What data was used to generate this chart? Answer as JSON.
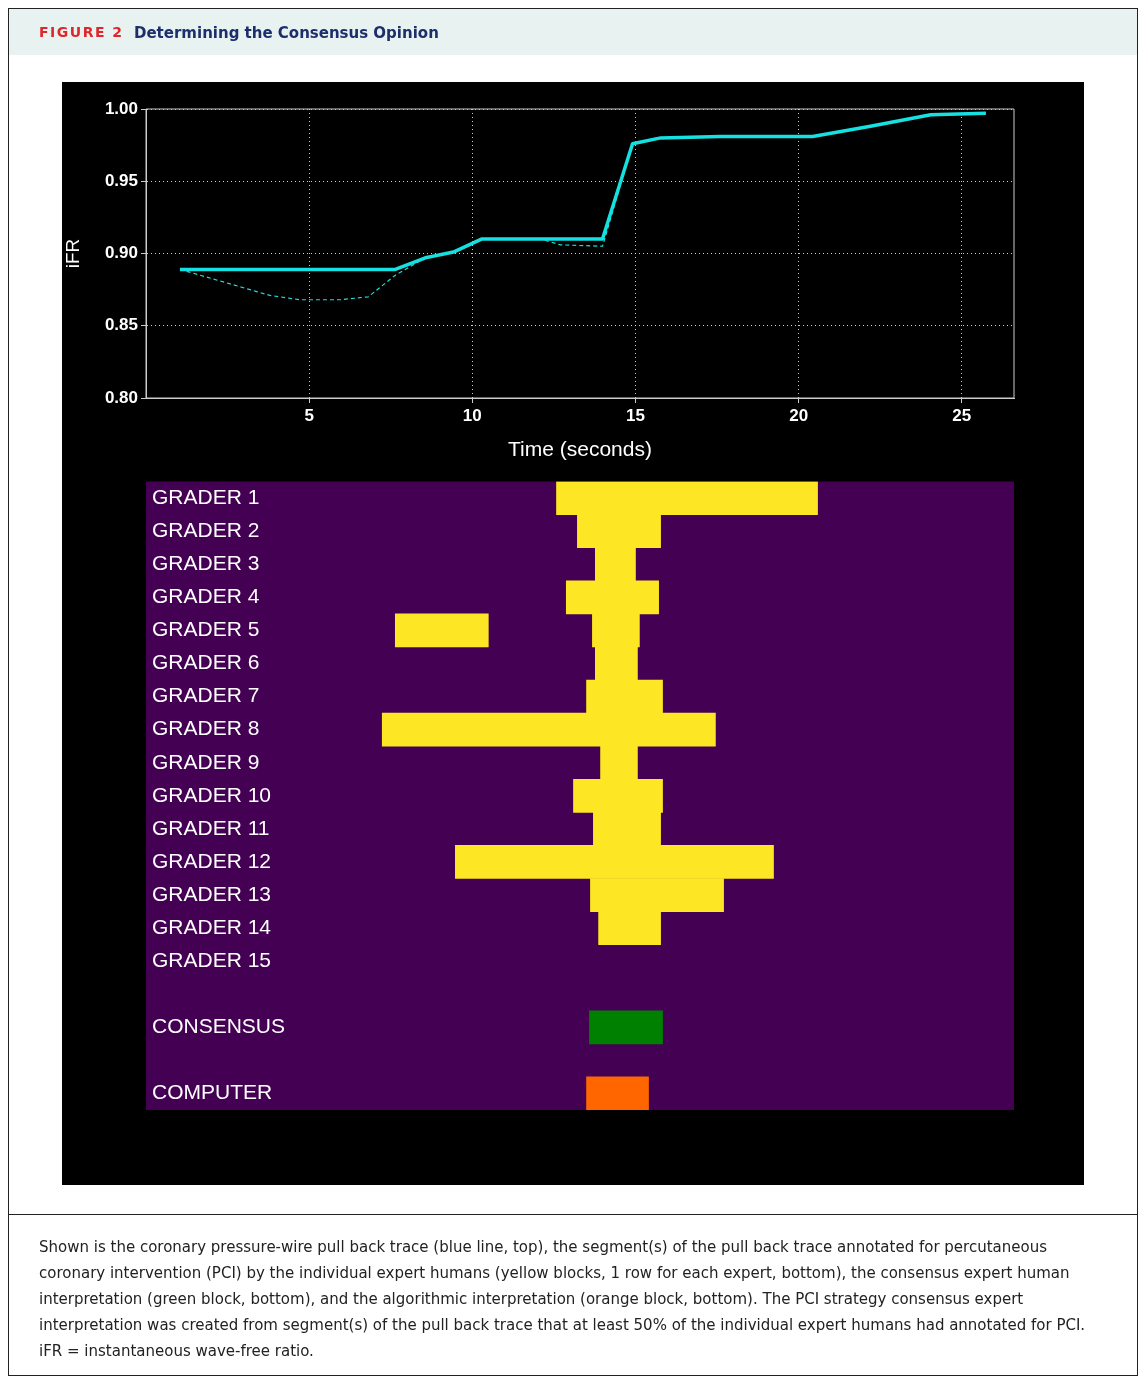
{
  "chart_data": [
    {
      "type": "line",
      "subtitle": "FIGURE 2",
      "title": "Determining the Consensus Opinion",
      "xlabel": "Time (seconds)",
      "ylabel": "iFR",
      "xlim": [
        0,
        26.6
      ],
      "xticks": [
        5,
        10,
        15,
        20,
        25
      ],
      "ylim": [
        0.8,
        1.0
      ],
      "yticks": [
        {
          "value": 0.8,
          "label": "0.80"
        },
        {
          "value": 0.85,
          "label": "0.85"
        },
        {
          "value": 0.9,
          "label": "0.90"
        },
        {
          "value": 0.95,
          "label": "0.95"
        },
        {
          "value": 1.0,
          "label": "1.00"
        }
      ],
      "grid": true,
      "legend": false,
      "marker": "none",
      "series": [
        {
          "color": "#16e0e0",
          "line_style": "dashed",
          "x": [
            1.04,
            3.8,
            4.72,
            5.95,
            6.81,
            7.64,
            8.56,
            9.42,
            10.28,
            12.1,
            12.7,
            13.99,
            14.91,
            15.77
          ],
          "values": [
            0.889,
            0.871,
            0.868,
            0.868,
            0.87,
            0.885,
            0.897,
            0.901,
            0.91,
            0.91,
            0.906,
            0.905,
            0.976,
            0.98
          ]
        },
        {
          "color": "#16e0e0",
          "line_style": "solid",
          "x": [
            1.04,
            7.64,
            8.56,
            9.42,
            10.28,
            13.99,
            14.91,
            15.77,
            17.6,
            20.43,
            22.2,
            24.05,
            25.74
          ],
          "values": [
            0.889,
            0.889,
            0.897,
            0.901,
            0.91,
            0.91,
            0.976,
            0.98,
            0.981,
            0.981,
            0.988,
            0.996,
            0.997
          ]
        }
      ]
    },
    {
      "type": "bar",
      "orientation": "horizontal",
      "xlim": [
        0,
        26.6
      ],
      "tick_labels": "y",
      "grid": false,
      "legend": false,
      "categories": [
        "GRADER 1",
        "GRADER 2",
        "GRADER 3",
        "GRADER 4",
        "GRADER 5",
        "GRADER 6",
        "GRADER 7",
        "GRADER 8",
        "GRADER 9",
        "GRADER 10",
        "GRADER 11",
        "GRADER 12",
        "GRADER 13",
        "GRADER 14",
        "GRADER 15",
        null,
        "CONSENSUS",
        null,
        "COMPUTER"
      ],
      "series": [
        {
          "colors": [
            "#fde725",
            "#fde725",
            "#fde725",
            "#fde725",
            "#fde725",
            "#fde725",
            "#fde725",
            "#fde725",
            "#fde725",
            "#fde725",
            "#fde725",
            "#fde725",
            "#fde725",
            "#fde725",
            "#fde725",
            "#fde725",
            "#008000",
            "#fde725",
            "#ff6600"
          ],
          "base": [
            12.58,
            13.22,
            13.77,
            12.88,
            7.64,
            13.77,
            13.5,
            7.24,
            13.93,
            13.1,
            13.71,
            9.48,
            13.62,
            13.87,
            null,
            null,
            13.59,
            null,
            13.5
          ],
          "values": [
            8.0,
            2.55,
            1.23,
            2.83,
            2.85,
            1.29,
            2.33,
            10.21,
            1.13,
            2.73,
            2.06,
            9.75,
            4.08,
            1.9,
            null,
            null,
            2.24,
            null,
            1.9
          ]
        },
        {
          "color": "#fde725",
          "base": [
            null,
            null,
            null,
            null,
            13.68,
            null,
            null,
            null,
            null,
            null,
            null,
            null,
            null,
            null,
            null,
            null,
            null,
            null,
            null
          ],
          "values": [
            null,
            null,
            null,
            null,
            1.44,
            null,
            null,
            null,
            null,
            null,
            null,
            null,
            null,
            null,
            null,
            null,
            null,
            null,
            null
          ]
        }
      ],
      "annotations": [
        "Shown is the coronary pressure-wire pull back trace (blue line, top), the segment(s) of the pull back trace annotated for percutaneous coronary intervention (PCI) by the individual expert humans (yellow blocks, 1 row for each expert, bottom), the consensus expert human interpretation (green block, bottom), and the algorithmic interpretation (orange block, bottom). The PCI strategy consensus expert interpretation was created from segment(s) of the pull back trace that at least 50% of the individual expert humans had annotated for PCI. iFR = instantaneous wave-free ratio."
      ]
    }
  ]
}
